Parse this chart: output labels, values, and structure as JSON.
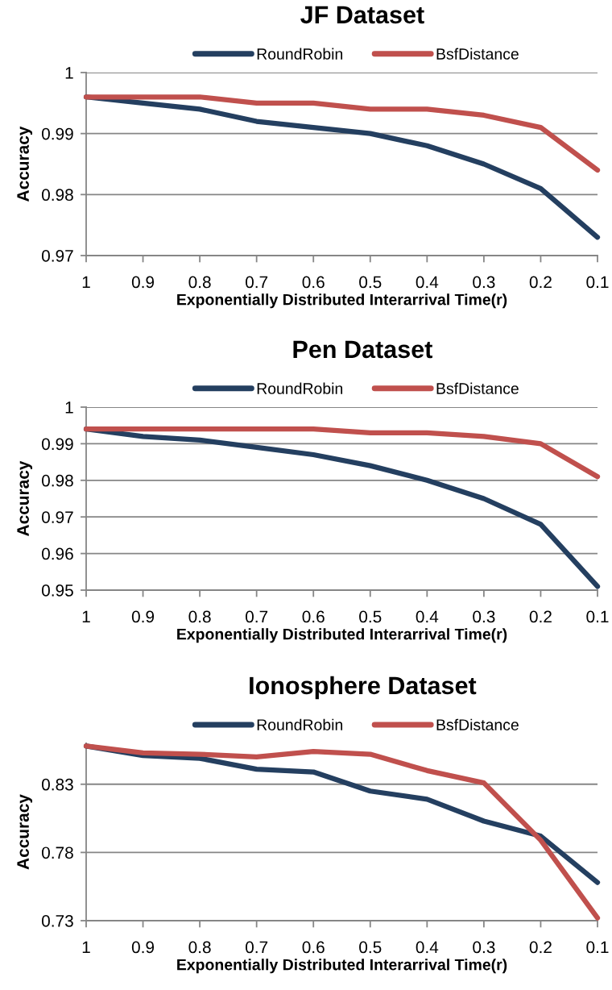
{
  "chart_data": [
    {
      "type": "line",
      "title": "JF Dataset",
      "xlabel": "Exponentially Distributed Interarrival Time(r)",
      "ylabel": "Accuracy",
      "categories": [
        "1",
        "0.9",
        "0.8",
        "0.7",
        "0.6",
        "0.5",
        "0.4",
        "0.3",
        "0.2",
        "0.1"
      ],
      "series": [
        {
          "name": "RoundRobin",
          "color": "#243f60",
          "values": [
            0.996,
            0.995,
            0.994,
            0.992,
            0.991,
            0.99,
            0.988,
            0.985,
            0.981,
            0.973
          ]
        },
        {
          "name": "BsfDistance",
          "color": "#c0504d",
          "values": [
            0.996,
            0.996,
            0.996,
            0.995,
            0.995,
            0.994,
            0.994,
            0.993,
            0.991,
            0.984
          ]
        }
      ],
      "ylim": [
        0.97,
        1
      ],
      "yticks": [
        0.97,
        0.98,
        0.99,
        1
      ],
      "grid": "y",
      "legend": "top",
      "line_style": "solid"
    },
    {
      "type": "line",
      "title": "Pen Dataset",
      "xlabel": "Exponentially Distributed Interarrival Time(r)",
      "ylabel": "Accuracy",
      "categories": [
        "1",
        "0.9",
        "0.8",
        "0.7",
        "0.6",
        "0.5",
        "0.4",
        "0.3",
        "0.2",
        "0.1"
      ],
      "series": [
        {
          "name": "RoundRobin",
          "color": "#243f60",
          "values": [
            0.994,
            0.992,
            0.991,
            0.989,
            0.987,
            0.984,
            0.98,
            0.975,
            0.968,
            0.951
          ]
        },
        {
          "name": "BsfDistance",
          "color": "#c0504d",
          "values": [
            0.994,
            0.994,
            0.994,
            0.994,
            0.994,
            0.993,
            0.993,
            0.992,
            0.99,
            0.981
          ]
        }
      ],
      "ylim": [
        0.95,
        1
      ],
      "yticks": [
        0.95,
        0.96,
        0.97,
        0.98,
        0.99,
        1
      ],
      "grid": "y",
      "legend": "top",
      "line_style": "solid"
    },
    {
      "type": "line",
      "title": "Ionosphere Dataset",
      "xlabel": "Exponentially Distributed Interarrival Time(r)",
      "ylabel": "Accuracy",
      "categories": [
        "1",
        "0.9",
        "0.8",
        "0.7",
        "0.6",
        "0.5",
        "0.4",
        "0.3",
        "0.2",
        "0.1"
      ],
      "series": [
        {
          "name": "RoundRobin",
          "color": "#243f60",
          "values": [
            0.858,
            0.851,
            0.849,
            0.841,
            0.839,
            0.825,
            0.819,
            0.803,
            0.792,
            0.758
          ]
        },
        {
          "name": "BsfDistance",
          "color": "#c0504d",
          "values": [
            0.858,
            0.853,
            0.852,
            0.85,
            0.854,
            0.852,
            0.84,
            0.831,
            0.789,
            0.732
          ]
        }
      ],
      "ylim": [
        0.73,
        0.86
      ],
      "yticks": [
        0.73,
        0.78,
        0.83
      ],
      "grid": "y",
      "legend": "top",
      "line_style": "solid"
    }
  ]
}
